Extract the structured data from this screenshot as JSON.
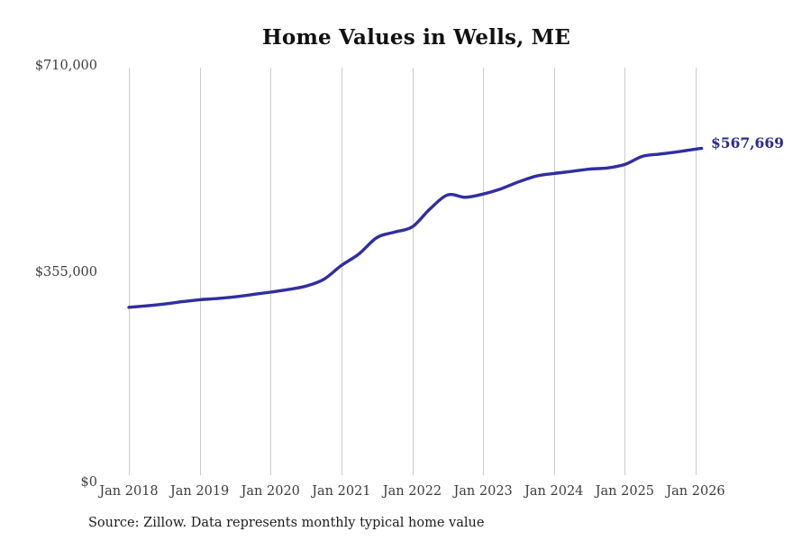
{
  "page": {
    "source_note": "Source: Zillow. Data represents monthly typical home value"
  },
  "chart_data": {
    "type": "line",
    "title": "Home Values in Wells, ME",
    "xlabel": "",
    "ylabel": "",
    "ylim": [
      0,
      710000
    ],
    "grid": "vertical-only",
    "legend": "none",
    "colors": {
      "line": "#322e9e",
      "end_label": "#2d2b8e",
      "gridline": "#cccccc",
      "axis_text": "#3d3d3d"
    },
    "end_label": "$567,669",
    "latest_value": 567669,
    "y_ticks": [
      {
        "label": "$0",
        "value": 0
      },
      {
        "label": "$355,000",
        "value": 355000
      },
      {
        "label": "$710,000",
        "value": 710000
      }
    ],
    "x_ticks": [
      {
        "label": "Jan 2018",
        "date": "2018-01"
      },
      {
        "label": "Jan 2019",
        "date": "2019-01"
      },
      {
        "label": "Jan 2020",
        "date": "2020-01"
      },
      {
        "label": "Jan 2021",
        "date": "2021-01"
      },
      {
        "label": "Jan 2022",
        "date": "2022-01"
      },
      {
        "label": "Jan 2023",
        "date": "2023-01"
      },
      {
        "label": "Jan 2024",
        "date": "2024-01"
      },
      {
        "label": "Jan 2025",
        "date": "2025-01"
      },
      {
        "label": "Jan 2026",
        "date": "2026-01"
      }
    ],
    "series": [
      {
        "name": "Typical home value",
        "points": [
          {
            "date": "2018-01",
            "value": 294000
          },
          {
            "date": "2018-04",
            "value": 296500
          },
          {
            "date": "2018-07",
            "value": 299500
          },
          {
            "date": "2018-10",
            "value": 303500
          },
          {
            "date": "2019-01",
            "value": 307000
          },
          {
            "date": "2019-04",
            "value": 309000
          },
          {
            "date": "2019-07",
            "value": 312000
          },
          {
            "date": "2019-10",
            "value": 316000
          },
          {
            "date": "2020-01",
            "value": 320000
          },
          {
            "date": "2020-04",
            "value": 324500
          },
          {
            "date": "2020-07",
            "value": 330500
          },
          {
            "date": "2020-10",
            "value": 342000
          },
          {
            "date": "2021-01",
            "value": 366000
          },
          {
            "date": "2021-04",
            "value": 386000
          },
          {
            "date": "2021-07",
            "value": 414000
          },
          {
            "date": "2021-10",
            "value": 423500
          },
          {
            "date": "2022-01",
            "value": 432500
          },
          {
            "date": "2022-04",
            "value": 463500
          },
          {
            "date": "2022-07",
            "value": 487500
          },
          {
            "date": "2022-10",
            "value": 483500
          },
          {
            "date": "2023-01",
            "value": 489000
          },
          {
            "date": "2023-04",
            "value": 498000
          },
          {
            "date": "2023-07",
            "value": 510000
          },
          {
            "date": "2023-10",
            "value": 520000
          },
          {
            "date": "2024-01",
            "value": 524500
          },
          {
            "date": "2024-04",
            "value": 528000
          },
          {
            "date": "2024-07",
            "value": 532000
          },
          {
            "date": "2024-10",
            "value": 534000
          },
          {
            "date": "2025-01",
            "value": 540000
          },
          {
            "date": "2025-04",
            "value": 554000
          },
          {
            "date": "2025-07",
            "value": 558000
          },
          {
            "date": "2025-10",
            "value": 562000
          },
          {
            "date": "2026-01",
            "value": 566500
          },
          {
            "date": "2026-02",
            "value": 567669
          }
        ]
      }
    ]
  }
}
